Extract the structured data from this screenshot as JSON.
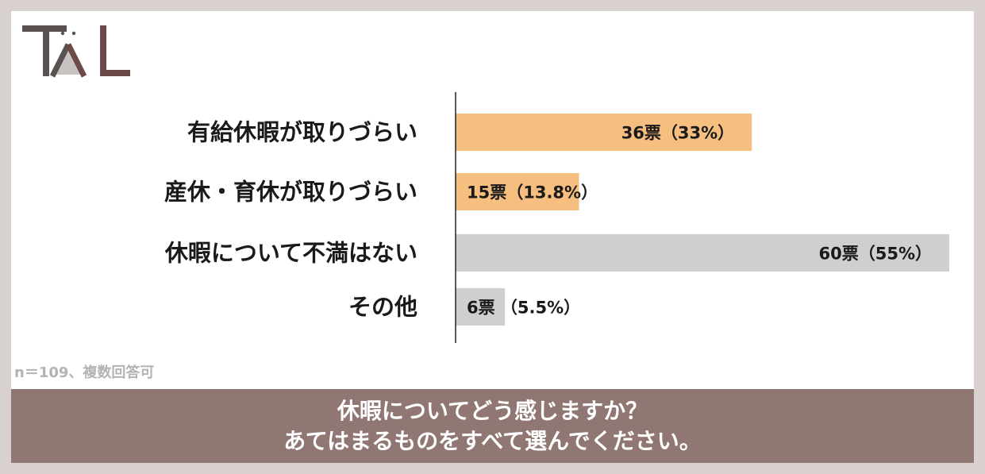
{
  "logo": {
    "text": "TAL",
    "colors": {
      "dark": "#5a5250",
      "brown": "#6b4a48",
      "light": "#c8c2c0"
    }
  },
  "note": "n＝109、複数回答可",
  "footer": {
    "line1": "休暇についてどう感じますか？",
    "line2": "あてはまるものをすべて選んでください。"
  },
  "colors": {
    "orange": "#f7bf7f",
    "gray": "#d0cece",
    "background": "#d9d1cf",
    "footer": "#907773"
  },
  "chart_data": {
    "type": "bar",
    "orientation": "horizontal",
    "title": "",
    "xlabel": "",
    "ylabel": "",
    "xlim": [
      0,
      60
    ],
    "grid": false,
    "categories": [
      "有給休暇が取りづらい",
      "産休・育休が取りづらい",
      "休暇について不満はない",
      "その他"
    ],
    "values": [
      36,
      15,
      60,
      6
    ],
    "labels": [
      "36票（33%）",
      "15票（13.8%）",
      "60票（55%）",
      "6票 （5.5%）"
    ],
    "bar_colors": [
      "#f7bf7f",
      "#f7bf7f",
      "#d0cece",
      "#d0cece"
    ]
  }
}
